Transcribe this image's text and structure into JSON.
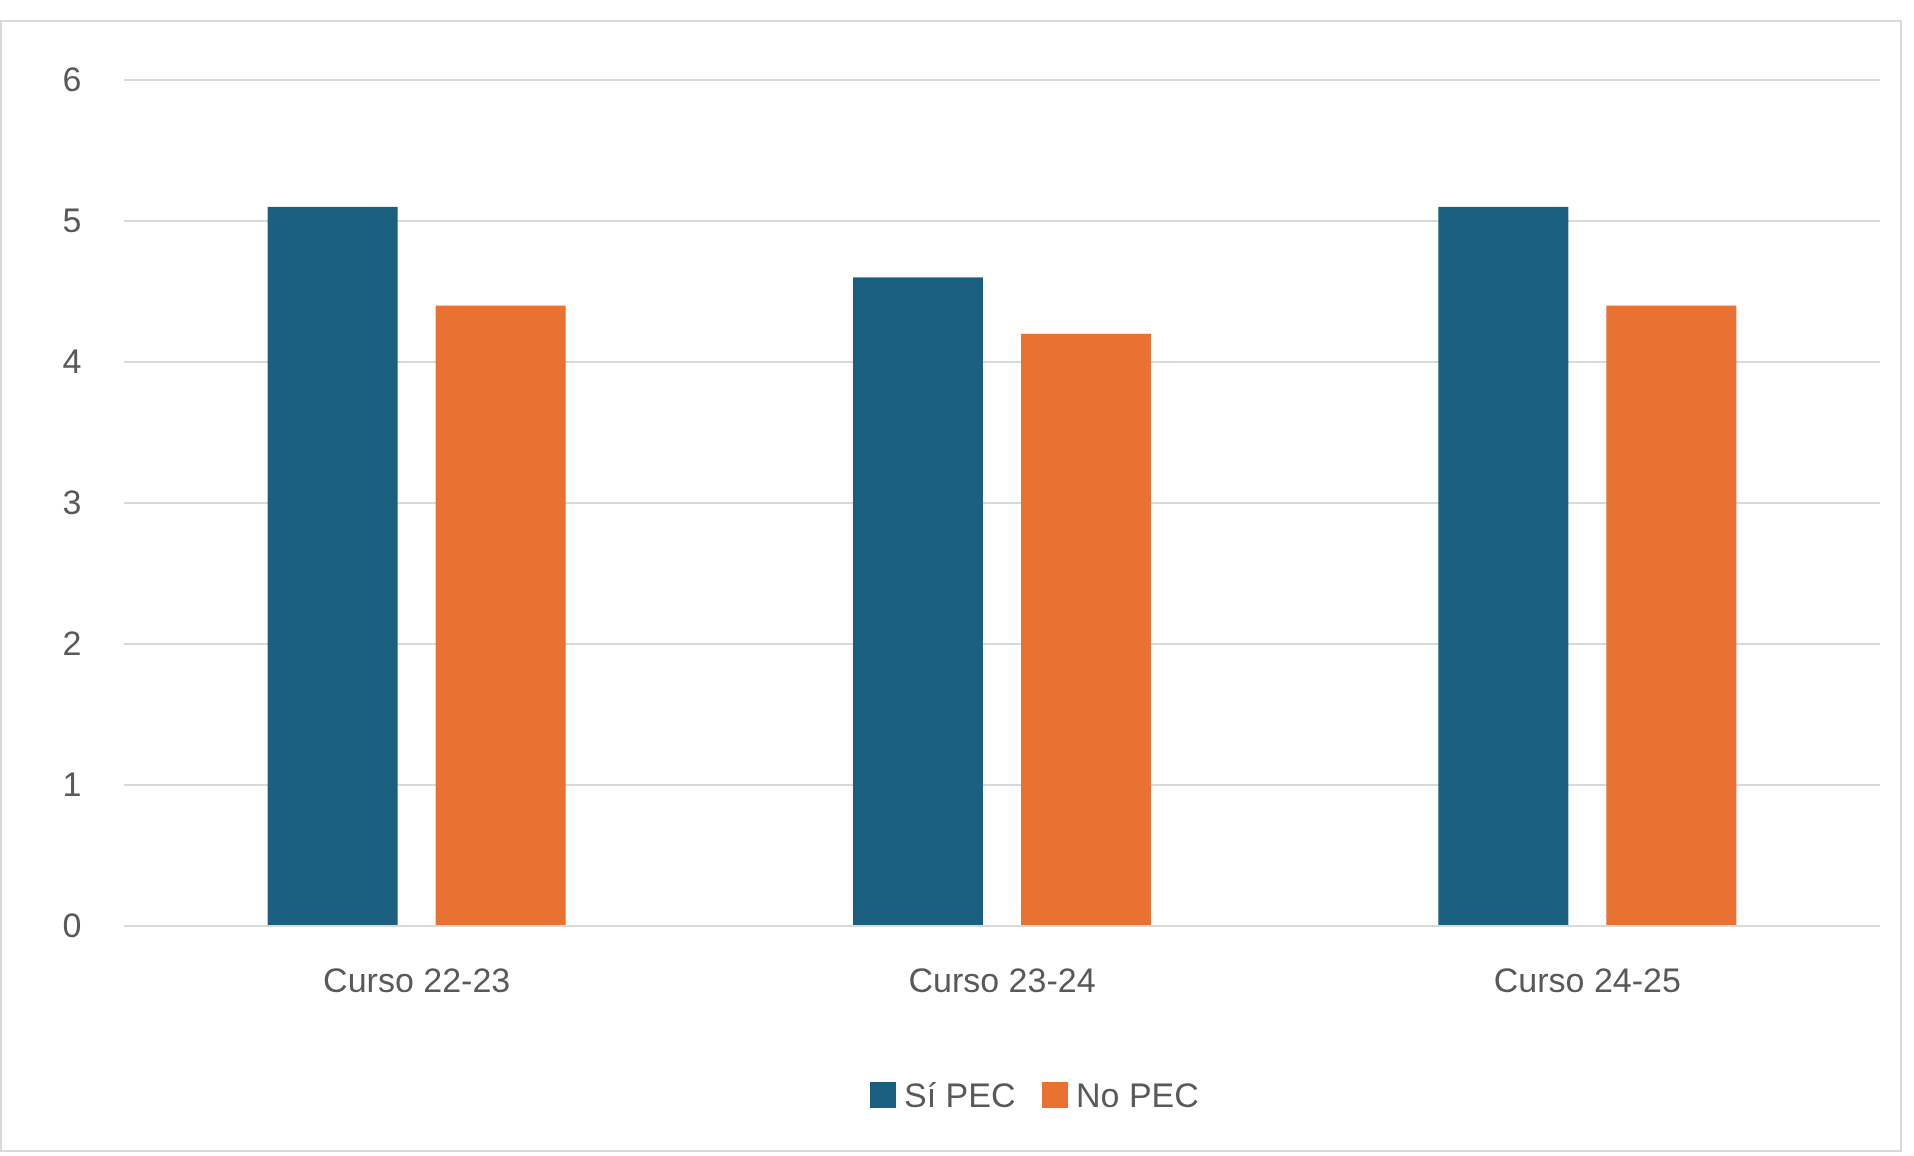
{
  "chart_data": {
    "type": "bar",
    "categories": [
      "Curso 22-23",
      "Curso 23-24",
      "Curso 24-25"
    ],
    "series": [
      {
        "name": "Sí PEC",
        "color": "#1a5e80",
        "values": [
          5.1,
          4.6,
          5.1
        ]
      },
      {
        "name": "No PEC",
        "color": "#e97132",
        "values": [
          4.4,
          4.2,
          4.4
        ]
      }
    ],
    "ylim": [
      0,
      6
    ],
    "yticks": [
      0,
      1,
      2,
      3,
      4,
      5,
      6
    ],
    "grid": "y",
    "legend": "bottom"
  }
}
